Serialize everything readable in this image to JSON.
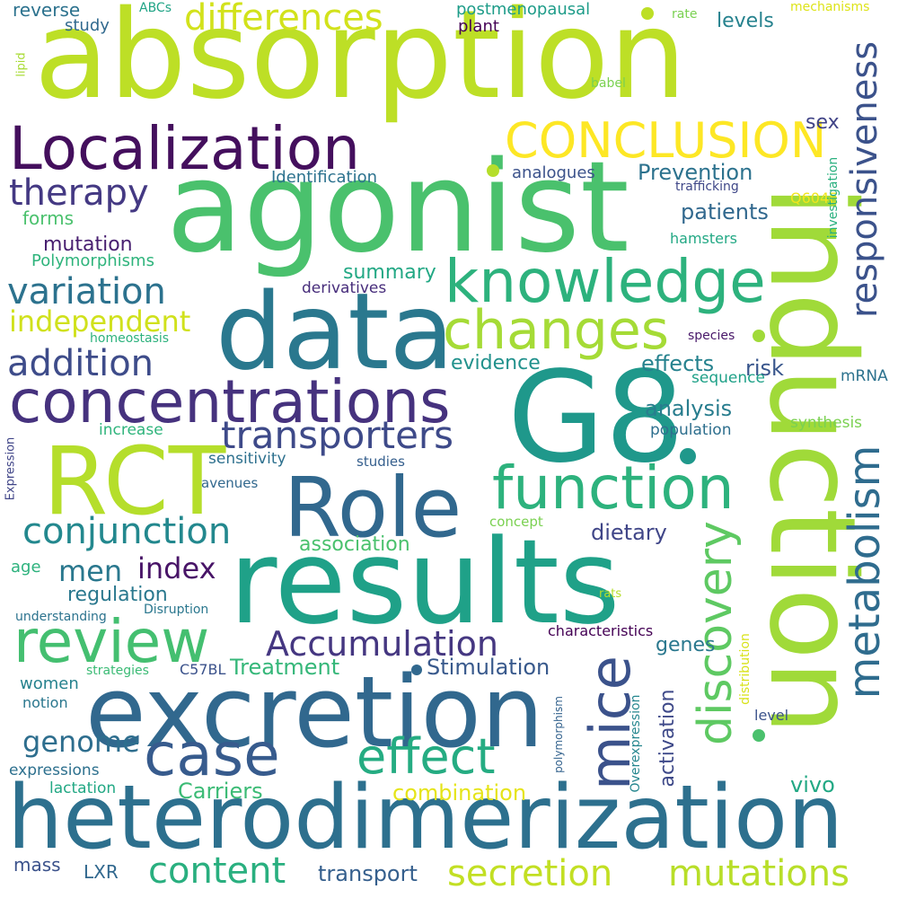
{
  "word_cloud": {
    "words": [
      {
        "text": "absorption",
        "color": "#bddf26"
      },
      {
        "text": "agonist",
        "color": "#4ac16d"
      },
      {
        "text": "induction",
        "color": "#a0da39"
      },
      {
        "text": "G8",
        "color": "#1f988b"
      },
      {
        "text": "data",
        "color": "#2a788e"
      },
      {
        "text": "results",
        "color": "#1fa188"
      },
      {
        "text": "heterodimerization",
        "color": "#2d708e"
      },
      {
        "text": "excretion",
        "color": "#31688e"
      },
      {
        "text": "RCT",
        "color": "#b5de2b"
      },
      {
        "text": "Role",
        "color": "#31688e"
      },
      {
        "text": "concentrations",
        "color": "#46327e"
      },
      {
        "text": "Localization",
        "color": "#440f5d"
      },
      {
        "text": "knowledge",
        "color": "#2db27d"
      },
      {
        "text": "function",
        "color": "#2db27d"
      },
      {
        "text": "changes",
        "color": "#a5db36"
      },
      {
        "text": "review",
        "color": "#44bf70"
      },
      {
        "text": "CONCLUSION",
        "color": "#fde725"
      },
      {
        "text": "case",
        "color": "#375b8d"
      },
      {
        "text": "effect",
        "color": "#25ac82"
      },
      {
        "text": "transporters",
        "color": "#3e4a89"
      },
      {
        "text": "mice",
        "color": "#3b528b"
      },
      {
        "text": "discovery",
        "color": "#5ec962"
      },
      {
        "text": "metabolism",
        "color": "#2f6c8e"
      },
      {
        "text": "responsiveness",
        "color": "#3b528b"
      },
      {
        "text": "differences",
        "color": "#d2e21b"
      },
      {
        "text": "therapy",
        "color": "#443983"
      },
      {
        "text": "variation",
        "color": "#2c728e"
      },
      {
        "text": "addition",
        "color": "#3e4c8a"
      },
      {
        "text": "conjunction",
        "color": "#23888e"
      },
      {
        "text": "Accumulation",
        "color": "#453781"
      },
      {
        "text": "independent",
        "color": "#d0e11c"
      },
      {
        "text": "content",
        "color": "#29af7f"
      },
      {
        "text": "secretion",
        "color": "#c2df23"
      },
      {
        "text": "mutations",
        "color": "#b8de29"
      },
      {
        "text": "men",
        "color": "#2a788e"
      },
      {
        "text": "genome",
        "color": "#2e6e8e"
      },
      {
        "text": "index",
        "color": "#481467"
      },
      {
        "text": "combination",
        "color": "#e5e419"
      },
      {
        "text": "Prevention",
        "color": "#2c728e"
      },
      {
        "text": "Stimulation",
        "color": "#38598c"
      },
      {
        "text": "Treatment",
        "color": "#35b779"
      },
      {
        "text": "Carriers",
        "color": "#3bbb75"
      },
      {
        "text": "transport",
        "color": "#355f8d"
      },
      {
        "text": "analysis",
        "color": "#287d8e"
      },
      {
        "text": "patients",
        "color": "#31688e"
      },
      {
        "text": "effects",
        "color": "#26828e"
      },
      {
        "text": "evidence",
        "color": "#21918c"
      },
      {
        "text": "risk",
        "color": "#39568c"
      },
      {
        "text": "summary",
        "color": "#22a884"
      },
      {
        "text": "association",
        "color": "#4ac16d"
      },
      {
        "text": "dietary",
        "color": "#404688"
      },
      {
        "text": "regulation",
        "color": "#2a788e"
      },
      {
        "text": "mutation",
        "color": "#481f70"
      },
      {
        "text": "levels",
        "color": "#26828e"
      },
      {
        "text": "genes",
        "color": "#2a788e"
      },
      {
        "text": "activation",
        "color": "#3e4989"
      },
      {
        "text": "vivo",
        "color": "#22a884"
      },
      {
        "text": "sex",
        "color": "#414487"
      },
      {
        "text": "forms",
        "color": "#4ac16d"
      },
      {
        "text": "age",
        "color": "#2db27d"
      },
      {
        "text": "women",
        "color": "#26828e"
      },
      {
        "text": "mass",
        "color": "#3b528b"
      },
      {
        "text": "LXR",
        "color": "#31688e"
      },
      {
        "text": "Polymorphisms",
        "color": "#2fb47c"
      },
      {
        "text": "Identification",
        "color": "#2c728e"
      },
      {
        "text": "analogues",
        "color": "#3b528b"
      },
      {
        "text": "postmenopausal",
        "color": "#1e9c89"
      },
      {
        "text": "plant",
        "color": "#440154"
      },
      {
        "text": "reverse",
        "color": "#2c728e"
      },
      {
        "text": "study",
        "color": "#30698e"
      },
      {
        "text": "ABCs",
        "color": "#20a486"
      },
      {
        "text": "rate",
        "color": "#7ad151"
      },
      {
        "text": "mechanisms",
        "color": "#dde318"
      },
      {
        "text": "lipid",
        "color": "#a8db34"
      },
      {
        "text": "babel",
        "color": "#7ad151"
      },
      {
        "text": "trafficking",
        "color": "#3f4788"
      },
      {
        "text": "Q604E",
        "color": "#f1e51d"
      },
      {
        "text": "investigation",
        "color": "#2ab07f"
      },
      {
        "text": "hamsters",
        "color": "#22a884"
      },
      {
        "text": "derivatives",
        "color": "#472d7b"
      },
      {
        "text": "homeostasis",
        "color": "#2db27d"
      },
      {
        "text": "species",
        "color": "#481769"
      },
      {
        "text": "sequence",
        "color": "#1fa188"
      },
      {
        "text": "mRNA",
        "color": "#2c728e"
      },
      {
        "text": "synthesis",
        "color": "#7ad151"
      },
      {
        "text": "population",
        "color": "#2e6f8e"
      },
      {
        "text": "increase",
        "color": "#2fb47c"
      },
      {
        "text": "sensitivity",
        "color": "#2d708e"
      },
      {
        "text": "studies",
        "color": "#355f8d"
      },
      {
        "text": "avenues",
        "color": "#31688e"
      },
      {
        "text": "Expression",
        "color": "#404588"
      },
      {
        "text": "concept",
        "color": "#7ad151"
      },
      {
        "text": "understanding",
        "color": "#2c738e"
      },
      {
        "text": "Disruption",
        "color": "#2a778e"
      },
      {
        "text": "rats",
        "color": "#b5de2b"
      },
      {
        "text": "characteristics",
        "color": "#440154"
      },
      {
        "text": "strategies",
        "color": "#3bbb75"
      },
      {
        "text": "C57BL",
        "color": "#3b528b"
      },
      {
        "text": "distribution",
        "color": "#d8e219"
      },
      {
        "text": "polymorphism",
        "color": "#33628d"
      },
      {
        "text": "Overexpression",
        "color": "#24868e"
      },
      {
        "text": "level",
        "color": "#3b528b"
      },
      {
        "text": "notion",
        "color": "#2a778e"
      },
      {
        "text": "expressions",
        "color": "#2d708e"
      },
      {
        "text": "lactation",
        "color": "#22a884"
      }
    ],
    "dot_colors": [
      "#bddf26",
      "#b5de2b",
      "#a0da39",
      "#4ac16d",
      "#1f988b",
      "#31688e",
      "#2db27d",
      "#a5db36"
    ]
  }
}
